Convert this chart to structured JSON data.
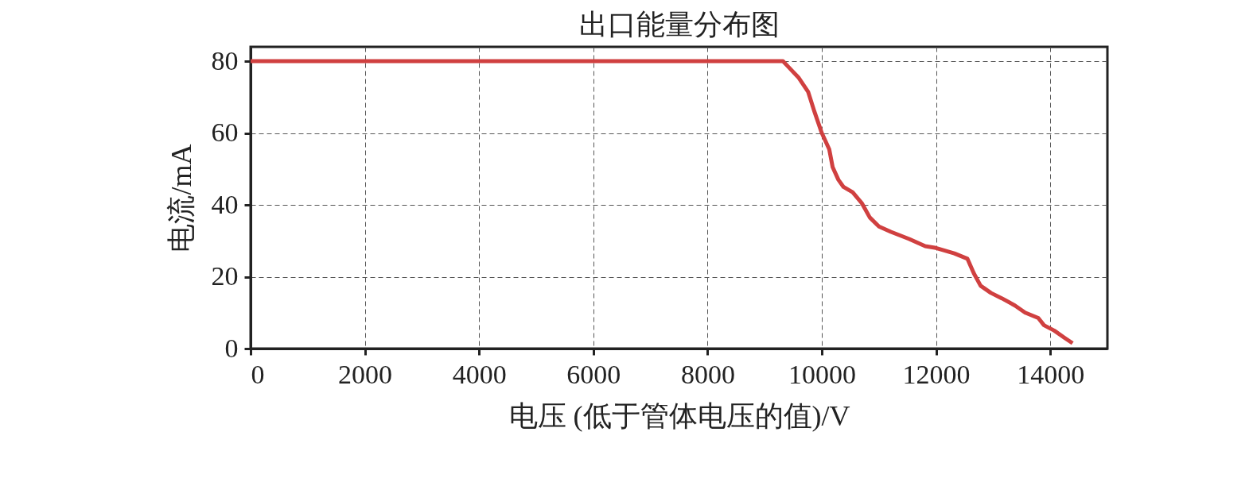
{
  "chart_data": {
    "type": "line",
    "title": "出口能量分布图",
    "xlabel": "电压 (低于管体电压的值)/V",
    "ylabel": "电流/mA",
    "x": [
      0,
      9320,
      9410,
      9590,
      9760,
      9870,
      10000,
      10130,
      10190,
      10290,
      10380,
      10540,
      10700,
      10840,
      11000,
      11210,
      11530,
      11810,
      12000,
      12320,
      12550,
      12660,
      12780,
      12960,
      13150,
      13380,
      13560,
      13790,
      13890,
      14070,
      14250,
      14390
    ],
    "series": [
      {
        "color": "#d04040",
        "values": [
          80,
          80,
          78.5,
          75.5,
          71.5,
          66,
          60,
          55.5,
          50.5,
          47,
          45,
          43.5,
          40.5,
          36.5,
          34,
          32.5,
          30.5,
          28.5,
          28,
          26.5,
          25,
          21,
          17.5,
          15.5,
          14,
          12,
          10,
          8.5,
          6.5,
          5,
          3,
          1.5
        ]
      }
    ],
    "xlim": [
      0,
      15000
    ],
    "xticks": [
      0,
      2000,
      4000,
      6000,
      8000,
      10000,
      12000,
      14000
    ],
    "ylim": [
      0,
      84
    ],
    "yticks": [
      0,
      20,
      40,
      60,
      80
    ],
    "grid": true,
    "marker": "none",
    "line_style": "solid"
  }
}
